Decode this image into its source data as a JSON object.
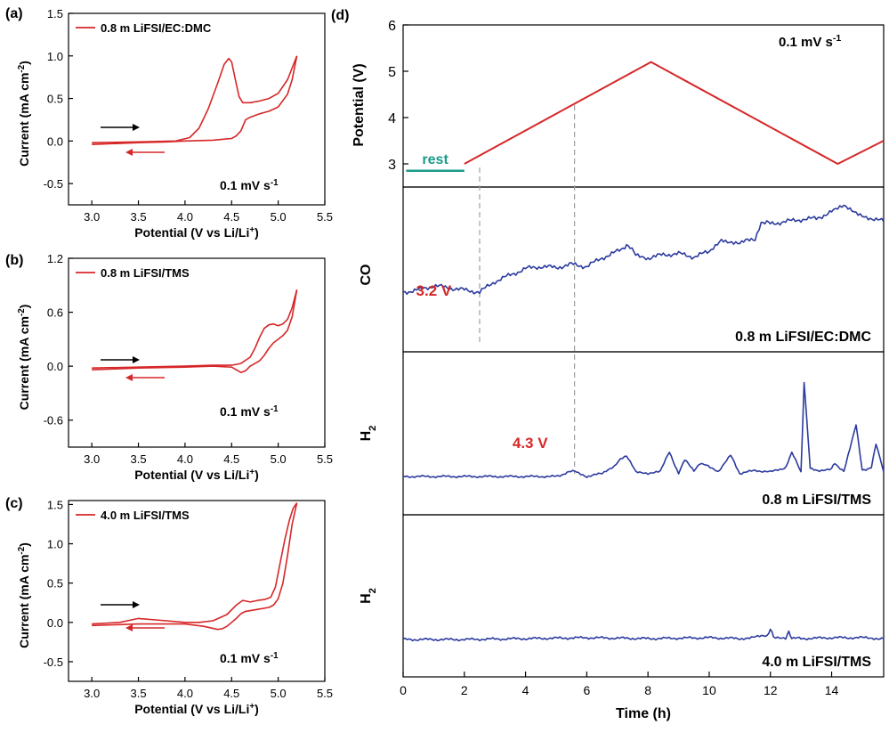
{
  "colors": {
    "cv": "#d62728",
    "ms": "#2b3a9e",
    "axis": "#000000",
    "rest": "#1a9a8a",
    "arrow_fwd": "#000000",
    "arrow_rev": "#d62728",
    "annot": "#d62728",
    "guide": "#a0a0a0"
  },
  "chart_data": [
    {
      "panel": "(a)",
      "type": "line",
      "xlabel": "Potential (V vs Li/Li",
      "xlabel_sup": "+",
      "xlabel_end": ")",
      "ylabel": "Current (mA cm",
      "ylabel_sup": "-2",
      "ylabel_end": ")",
      "xlim": [
        2.75,
        5.5
      ],
      "ylim": [
        -0.75,
        1.5
      ],
      "xticks": [
        3.0,
        3.5,
        4.0,
        4.5,
        5.0,
        5.5
      ],
      "xtick_labels": [
        "3.0",
        "3.5",
        "4.0",
        "4.5",
        "5.0",
        "5.5"
      ],
      "yticks": [
        -0.5,
        0.0,
        0.5,
        1.0,
        1.5
      ],
      "ytick_labels": [
        "-0.5",
        "0.0",
        "0.5",
        "1.0",
        "1.5"
      ],
      "legend": "0.8 m LiFSI/EC:DMC",
      "legend_position": "top-left",
      "annotation": "0.1 mV s",
      "annotation_sup": "-1",
      "series": [
        {
          "x": [
            3.0,
            3.5,
            3.9,
            4.05,
            4.15,
            4.25,
            4.35,
            4.42,
            4.47,
            4.5,
            4.54,
            4.58,
            4.62,
            4.7,
            4.8,
            4.9,
            5.0,
            5.1,
            5.2
          ],
          "y": [
            -0.02,
            -0.01,
            0.0,
            0.04,
            0.15,
            0.38,
            0.68,
            0.9,
            0.97,
            0.93,
            0.72,
            0.52,
            0.45,
            0.45,
            0.47,
            0.5,
            0.56,
            0.72,
            1.0
          ]
        },
        {
          "x": [
            5.2,
            5.15,
            5.1,
            5.0,
            4.9,
            4.8,
            4.7,
            4.65,
            4.6,
            4.55,
            4.5,
            4.3,
            4.0,
            3.8,
            3.5,
            3.0
          ],
          "y": [
            1.0,
            0.72,
            0.55,
            0.4,
            0.35,
            0.32,
            0.28,
            0.25,
            0.12,
            0.06,
            0.03,
            0.01,
            0.0,
            -0.01,
            -0.02,
            -0.04
          ]
        }
      ]
    },
    {
      "panel": "(b)",
      "type": "line",
      "xlabel": "Potential (V vs Li/Li",
      "xlabel_sup": "+",
      "xlabel_end": ")",
      "ylabel": "Current (mA cm",
      "ylabel_sup": "-2",
      "ylabel_end": ")",
      "xlim": [
        2.75,
        5.5
      ],
      "ylim": [
        -0.9,
        1.2
      ],
      "xticks": [
        3.0,
        3.5,
        4.0,
        4.5,
        5.0,
        5.5
      ],
      "xtick_labels": [
        "3.0",
        "3.5",
        "4.0",
        "4.5",
        "5.0",
        "5.5"
      ],
      "yticks": [
        -0.6,
        0.0,
        0.6,
        1.2
      ],
      "ytick_labels": [
        "-0.6",
        "0.0",
        "0.6",
        "1.2"
      ],
      "legend": "0.8 m LiFSI/TMS",
      "legend_position": "top-left",
      "annotation": "0.1 mV s",
      "annotation_sup": "-1",
      "series": [
        {
          "x": [
            3.0,
            3.5,
            4.0,
            4.3,
            4.5,
            4.6,
            4.7,
            4.75,
            4.8,
            4.85,
            4.9,
            4.95,
            5.0,
            5.05,
            5.1,
            5.15,
            5.2
          ],
          "y": [
            -0.02,
            -0.01,
            0.0,
            0.01,
            0.01,
            0.03,
            0.1,
            0.2,
            0.32,
            0.42,
            0.46,
            0.47,
            0.45,
            0.47,
            0.52,
            0.65,
            0.85
          ]
        },
        {
          "x": [
            5.2,
            5.15,
            5.1,
            5.05,
            5.0,
            4.95,
            4.9,
            4.85,
            4.8,
            4.75,
            4.7,
            4.65,
            4.6,
            4.55,
            4.5,
            4.3,
            4.0,
            3.5,
            3.0
          ],
          "y": [
            0.85,
            0.55,
            0.4,
            0.34,
            0.3,
            0.26,
            0.2,
            0.12,
            0.06,
            0.03,
            0.0,
            -0.05,
            -0.07,
            -0.04,
            -0.01,
            0.0,
            -0.01,
            -0.02,
            -0.04
          ]
        }
      ]
    },
    {
      "panel": "(c)",
      "type": "line",
      "xlabel": "Potential (V vs Li/Li",
      "xlabel_sup": "+",
      "xlabel_end": ")",
      "ylabel": "Current (mA cm",
      "ylabel_sup": "-2",
      "ylabel_end": ")",
      "xlim": [
        2.75,
        5.5
      ],
      "ylim": [
        -0.75,
        1.55
      ],
      "xticks": [
        3.0,
        3.5,
        4.0,
        4.5,
        5.0,
        5.5
      ],
      "xtick_labels": [
        "3.0",
        "3.5",
        "4.0",
        "4.5",
        "5.0",
        "5.5"
      ],
      "yticks": [
        -0.5,
        0.0,
        0.5,
        1.0,
        1.5
      ],
      "ytick_labels": [
        "-0.5",
        "0.0",
        "0.5",
        "1.0",
        "1.5"
      ],
      "legend": "4.0 m LiFSI/TMS",
      "legend_position": "top-left",
      "annotation": "0.1 mV s",
      "annotation_sup": "-1",
      "series": [
        {
          "x": [
            3.0,
            3.3,
            3.5,
            3.8,
            4.0,
            4.15,
            4.3,
            4.45,
            4.55,
            4.62,
            4.7,
            4.78,
            4.85,
            4.92,
            4.97,
            5.02,
            5.07,
            5.12,
            5.16,
            5.2
          ],
          "y": [
            -0.02,
            0.0,
            0.05,
            0.02,
            0.0,
            0.0,
            0.02,
            0.1,
            0.22,
            0.28,
            0.26,
            0.28,
            0.29,
            0.32,
            0.45,
            0.75,
            1.05,
            1.3,
            1.45,
            1.52
          ]
        },
        {
          "x": [
            5.2,
            5.15,
            5.1,
            5.05,
            5.0,
            4.95,
            4.9,
            4.8,
            4.7,
            4.65,
            4.6,
            4.55,
            4.5,
            4.45,
            4.4,
            4.35,
            4.2,
            4.0,
            3.5,
            3.0
          ],
          "y": [
            1.52,
            1.25,
            0.85,
            0.5,
            0.3,
            0.22,
            0.19,
            0.17,
            0.15,
            0.14,
            0.11,
            0.05,
            0.0,
            -0.05,
            -0.08,
            -0.09,
            -0.05,
            -0.02,
            -0.02,
            -0.04
          ]
        }
      ]
    },
    {
      "panel": "(d)",
      "type": "line",
      "xlabel": "Time (h)",
      "xlim": [
        0,
        15.7
      ],
      "xticks": [
        0,
        2,
        4,
        6,
        8,
        10,
        12,
        14
      ],
      "xtick_labels": [
        "0",
        "2",
        "4",
        "6",
        "8",
        "10",
        "12",
        "14"
      ],
      "subplots": [
        {
          "ylabel": "Potential (V)",
          "ylim": [
            2.5,
            6
          ],
          "yticks": [
            3,
            4,
            5,
            6
          ],
          "ytick_labels": [
            "3",
            "4",
            "5",
            "6"
          ],
          "annotation": "0.1 mV s",
          "annotation_sup": "-1",
          "rest_label": "rest",
          "rest_x": [
            0.1,
            2.0
          ],
          "x": [
            2.0,
            8.1,
            14.2,
            15.7
          ],
          "y": [
            3.0,
            5.2,
            3.0,
            3.5
          ]
        },
        {
          "ylabel": "CO",
          "label": "0.8 m LiFSI/EC:DMC",
          "marker_text": "3.2 V",
          "marker_x": 2.5,
          "x": [
            0,
            0.5,
            1,
            1.5,
            2,
            2.5,
            3,
            3.5,
            4,
            4.5,
            5,
            5.5,
            6,
            6.5,
            7,
            7.3,
            7.6,
            8,
            8.5,
            9,
            9.5,
            10,
            10.4,
            10.6,
            11,
            11.5,
            11.7,
            12,
            12.5,
            13,
            13.5,
            14,
            14.4,
            14.8,
            15.2,
            15.7
          ],
          "y": [
            0.2,
            0.22,
            0.26,
            0.24,
            0.22,
            0.2,
            0.3,
            0.36,
            0.42,
            0.44,
            0.43,
            0.46,
            0.44,
            0.52,
            0.58,
            0.64,
            0.56,
            0.52,
            0.55,
            0.56,
            0.53,
            0.58,
            0.7,
            0.68,
            0.66,
            0.7,
            0.86,
            0.84,
            0.86,
            0.88,
            0.89,
            0.95,
            1.0,
            0.94,
            0.9,
            0.86
          ]
        },
        {
          "ylabel": "H",
          "ylabel_sub": "2",
          "label": "0.8 m LiFSI/TMS",
          "marker_text": "4.3 V",
          "marker_x": 5.6,
          "x": [
            0,
            1,
            2,
            3,
            4,
            5,
            5.6,
            6.0,
            6.5,
            6.9,
            7.1,
            7.3,
            7.6,
            8.0,
            8.4,
            8.7,
            9.0,
            9.2,
            9.5,
            9.7,
            9.9,
            10.3,
            10.7,
            11.0,
            11.5,
            12.0,
            12.5,
            12.7,
            13.0,
            13.1,
            13.3,
            13.6,
            14.0,
            14.1,
            14.4,
            14.8,
            15.0,
            15.3,
            15.45,
            15.7
          ],
          "y": [
            0,
            0,
            0,
            0,
            0,
            0,
            0.04,
            0,
            0.02,
            0.07,
            0.12,
            0.14,
            0.03,
            0.02,
            0.04,
            0.16,
            0.02,
            0.11,
            0.04,
            0.09,
            0.08,
            0.03,
            0.14,
            0.02,
            0.04,
            0.03,
            0.06,
            0.16,
            0.03,
            0.62,
            0.05,
            0.04,
            0.05,
            0.09,
            0.03,
            0.34,
            0.04,
            0.06,
            0.22,
            0.03
          ]
        },
        {
          "ylabel": "H",
          "ylabel_sub": "2",
          "label": "4.0 m LiFSI/TMS",
          "x": [
            0,
            2,
            4,
            6,
            8,
            10,
            11,
            11.9,
            12.0,
            12.1,
            12.5,
            12.6,
            12.7,
            13,
            14,
            15,
            15.7
          ],
          "y": [
            0,
            0,
            0.005,
            0.01,
            0.005,
            0.01,
            0.005,
            0.02,
            0.06,
            0.015,
            0.01,
            0.04,
            0.01,
            0.005,
            0.01,
            0.01,
            0.005
          ]
        }
      ]
    }
  ]
}
